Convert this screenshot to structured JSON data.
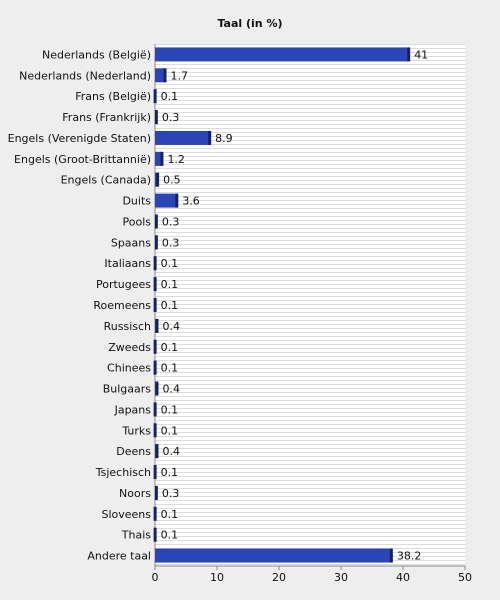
{
  "chart_data": {
    "type": "barh",
    "title": "Taal (in %)",
    "categories": [
      "Nederlands (België)",
      "Nederlands (Nederland)",
      "Frans (België)",
      "Frans (Frankrijk)",
      "Engels (Verenigde Staten)",
      "Engels (Groot-Brittannië)",
      "Engels (Canada)",
      "Duits",
      "Pools",
      "Spaans",
      "Italiaans",
      "Portugees",
      "Roemeens",
      "Russisch",
      "Zweeds",
      "Chinees",
      "Bulgaars",
      "Japans",
      "Turks",
      "Deens",
      "Tsjechisch",
      "Noors",
      "Sloveens",
      "Thais",
      "Andere taal"
    ],
    "values": [
      41,
      1.7,
      0.1,
      0.3,
      8.9,
      1.2,
      0.5,
      3.6,
      0.3,
      0.3,
      0.1,
      0.1,
      0.1,
      0.4,
      0.1,
      0.1,
      0.4,
      0.1,
      0.1,
      0.4,
      0.1,
      0.3,
      0.1,
      0.1,
      38.2
    ],
    "color": "#2b44b8",
    "xlim": [
      0,
      50
    ],
    "xticks": [
      0,
      10,
      20,
      30,
      40,
      50
    ]
  }
}
